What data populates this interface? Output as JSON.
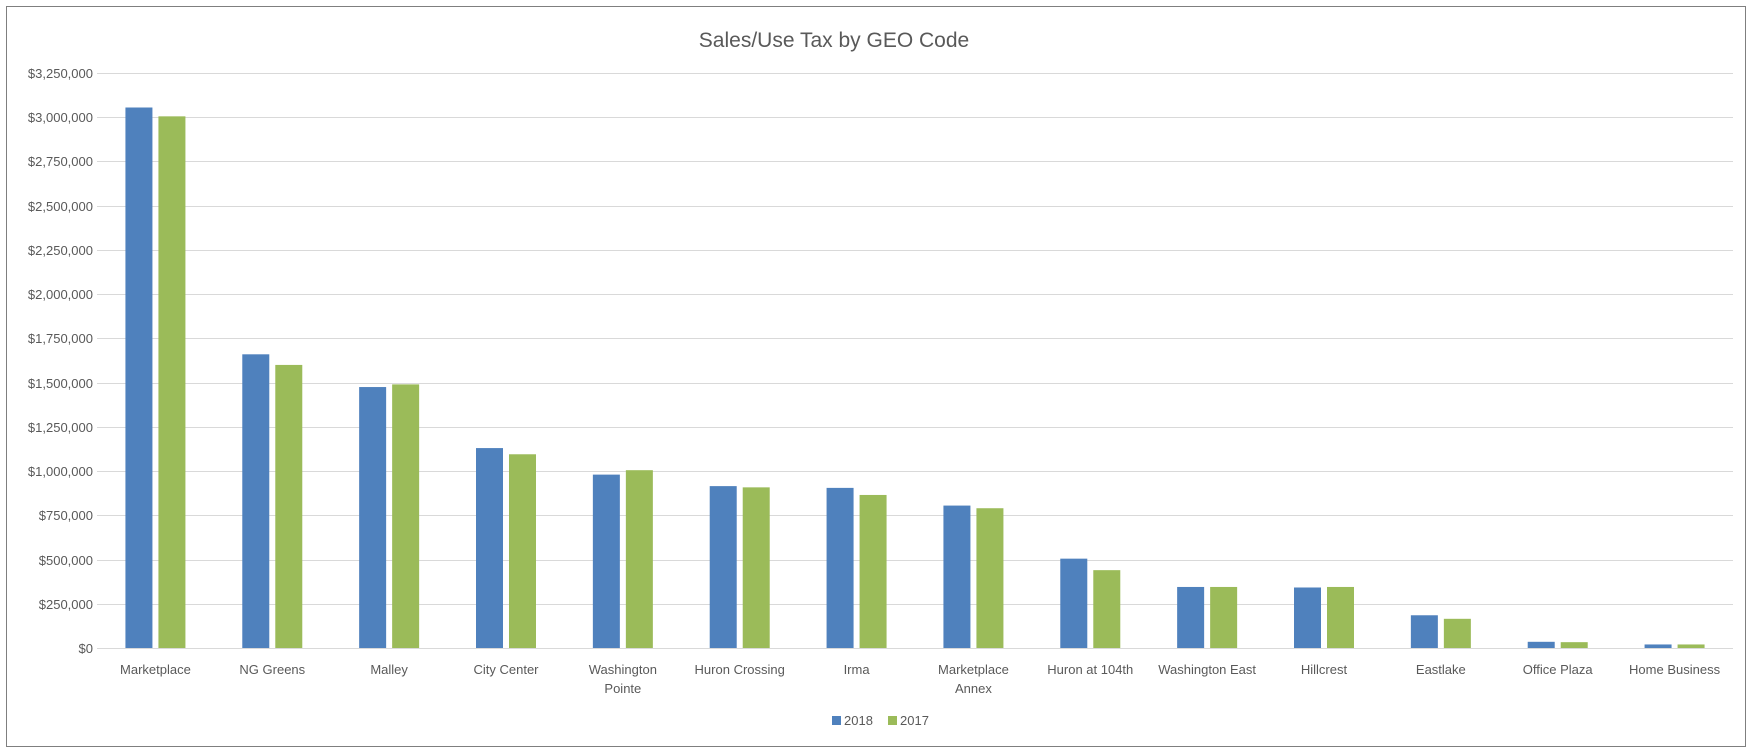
{
  "chart_data": {
    "type": "bar",
    "title": "Sales/Use Tax by GEO Code",
    "xlabel": "",
    "ylabel": "",
    "categories": [
      [
        "Marketplace"
      ],
      [
        "NG Greens"
      ],
      [
        "Malley"
      ],
      [
        "City Center"
      ],
      [
        "Washington",
        "Pointe"
      ],
      [
        "Huron Crossing"
      ],
      [
        "Irma"
      ],
      [
        "Marketplace",
        "Annex"
      ],
      [
        "Huron at 104th"
      ],
      [
        "Washington East"
      ],
      [
        "Hillcrest"
      ],
      [
        "Eastlake"
      ],
      [
        "Office Plaza"
      ],
      [
        "Home Business"
      ]
    ],
    "series": [
      {
        "name": "2018",
        "color": "#4f81bd",
        "values": [
          3055000,
          1660000,
          1475000,
          1130000,
          980000,
          915000,
          905000,
          805000,
          505000,
          345000,
          342000,
          185000,
          35000,
          20000
        ]
      },
      {
        "name": "2017",
        "color": "#9bbb59",
        "values": [
          3005000,
          1600000,
          1490000,
          1095000,
          1005000,
          908000,
          865000,
          790000,
          440000,
          345000,
          345000,
          165000,
          33000,
          20000
        ]
      }
    ],
    "ylim": [
      0,
      3250000
    ],
    "y_ticks": [
      0,
      250000,
      500000,
      750000,
      1000000,
      1250000,
      1500000,
      1750000,
      2000000,
      2250000,
      2500000,
      2750000,
      3000000,
      3250000
    ],
    "y_tick_labels": [
      "$0",
      "$250,000",
      "$500,000",
      "$750,000",
      "$1,000,000",
      "$1,250,000",
      "$1,500,000",
      "$1,750,000",
      "$2,000,000",
      "$2,250,000",
      "$2,500,000",
      "$2,750,000",
      "$3,000,000",
      "$3,250,000"
    ],
    "grid": true,
    "legend_position": "bottom-center"
  }
}
